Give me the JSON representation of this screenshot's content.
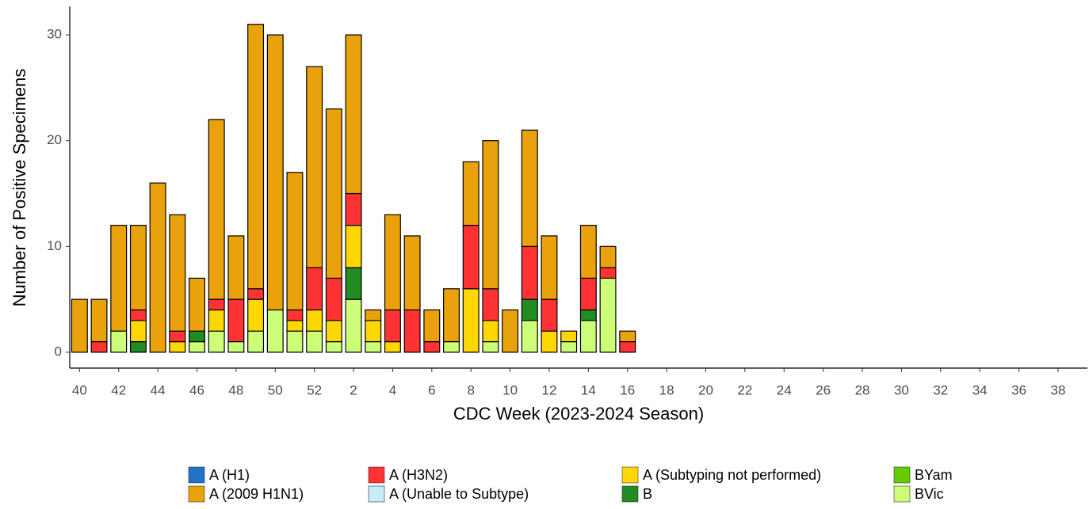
{
  "chart_data": {
    "type": "stacked_bar",
    "x_label": "CDC Week (2023-2024 Season)",
    "y_label": "Number of Positive Specimens",
    "categories": [
      "40",
      null,
      "42",
      null,
      "44",
      null,
      "46",
      null,
      "48",
      null,
      "50",
      null,
      "52",
      null,
      "2",
      null,
      "4",
      null,
      "6",
      null,
      "8",
      null,
      "10",
      null,
      "12",
      null,
      "14",
      null,
      "16",
      null,
      "18",
      null,
      "20",
      null,
      "22",
      null,
      "24",
      null,
      "26",
      null,
      "28",
      null,
      "30",
      null,
      "32",
      null,
      "34",
      null,
      "36",
      null,
      "38",
      null
    ],
    "ylim": [
      -1.5,
      32.7
    ],
    "yticks": [
      0,
      10,
      20,
      30
    ],
    "series": [
      {
        "name": "A (H1)",
        "color": "#1f74c8",
        "values": [
          0,
          0,
          0,
          0,
          0,
          0,
          0,
          0,
          0,
          0,
          0,
          0,
          0,
          0,
          0,
          0,
          0,
          0,
          0,
          0,
          0,
          0,
          0,
          0,
          0,
          0,
          0,
          0,
          0,
          0,
          0,
          0,
          0,
          0,
          0,
          0,
          0,
          0,
          0,
          0,
          0,
          0,
          0,
          0,
          0,
          0,
          0,
          0,
          0,
          0,
          0,
          0
        ]
      },
      {
        "name": "A (2009 H1N1)",
        "color": "#e9a20c",
        "values": [
          5,
          4,
          10,
          8,
          16,
          11,
          5,
          17,
          6,
          25,
          26,
          13,
          19,
          16,
          15,
          1,
          9,
          7,
          3,
          5,
          6,
          14,
          4,
          11,
          6,
          0,
          5,
          2,
          1,
          0,
          0,
          0,
          0,
          0,
          0,
          0,
          0,
          0,
          0,
          0,
          0,
          0,
          0,
          0,
          0,
          0,
          0,
          0,
          0,
          0,
          0,
          0
        ]
      },
      {
        "name": "A (H3N2)",
        "color": "#ff3333",
        "values": [
          0,
          1,
          0,
          1,
          0,
          1,
          0,
          1,
          4,
          1,
          0,
          1,
          4,
          4,
          3,
          0,
          3,
          4,
          1,
          0,
          6,
          3,
          0,
          5,
          3,
          0,
          3,
          1,
          1,
          0,
          0,
          0,
          0,
          0,
          0,
          0,
          0,
          0,
          0,
          0,
          0,
          0,
          0,
          0,
          0,
          0,
          0,
          0,
          0,
          0,
          0,
          0
        ]
      },
      {
        "name": "A (Unable to Subtype)",
        "color": "#c6ecfa",
        "values": [
          0,
          0,
          0,
          0,
          0,
          0,
          0,
          0,
          0,
          0,
          0,
          0,
          0,
          0,
          0,
          0,
          0,
          0,
          0,
          0,
          0,
          0,
          0,
          0,
          0,
          0,
          0,
          0,
          0,
          0,
          0,
          0,
          0,
          0,
          0,
          0,
          0,
          0,
          0,
          0,
          0,
          0,
          0,
          0,
          0,
          0,
          0,
          0,
          0,
          0,
          0,
          0
        ]
      },
      {
        "name": "A (Subtyping not performed)",
        "color": "#ffd700",
        "values": [
          0,
          0,
          0,
          2,
          0,
          1,
          0,
          2,
          0,
          3,
          0,
          1,
          2,
          2,
          4,
          2,
          1,
          0,
          0,
          0,
          6,
          2,
          0,
          0,
          2,
          1,
          0,
          0,
          0,
          0,
          0,
          0,
          0,
          0,
          0,
          0,
          0,
          0,
          0,
          0,
          0,
          0,
          0,
          0,
          0,
          0,
          0,
          0,
          0,
          0,
          0,
          0
        ]
      },
      {
        "name": "B",
        "color": "#228b22",
        "values": [
          0,
          0,
          0,
          1,
          0,
          0,
          1,
          0,
          0,
          0,
          0,
          0,
          0,
          0,
          3,
          0,
          0,
          0,
          0,
          0,
          0,
          0,
          0,
          2,
          0,
          0,
          1,
          0,
          0,
          0,
          0,
          0,
          0,
          0,
          0,
          0,
          0,
          0,
          0,
          0,
          0,
          0,
          0,
          0,
          0,
          0,
          0,
          0,
          0,
          0,
          0,
          0
        ]
      },
      {
        "name": "BYam",
        "color": "#66cc00",
        "values": [
          0,
          0,
          0,
          0,
          0,
          0,
          0,
          0,
          0,
          0,
          0,
          0,
          0,
          0,
          0,
          0,
          0,
          0,
          0,
          0,
          0,
          0,
          0,
          0,
          0,
          0,
          0,
          0,
          0,
          0,
          0,
          0,
          0,
          0,
          0,
          0,
          0,
          0,
          0,
          0,
          0,
          0,
          0,
          0,
          0,
          0,
          0,
          0,
          0,
          0,
          0,
          0
        ]
      },
      {
        "name": "BVic",
        "color": "#ccff77",
        "values": [
          0,
          0,
          2,
          0,
          0,
          0,
          1,
          2,
          1,
          2,
          4,
          2,
          2,
          1,
          5,
          1,
          0,
          0,
          0,
          1,
          0,
          1,
          0,
          3,
          0,
          1,
          3,
          7,
          0,
          0,
          0,
          0,
          0,
          0,
          0,
          0,
          0,
          0,
          0,
          0,
          0,
          0,
          0,
          0,
          0,
          0,
          0,
          0,
          0,
          0,
          0,
          0
        ]
      }
    ]
  }
}
